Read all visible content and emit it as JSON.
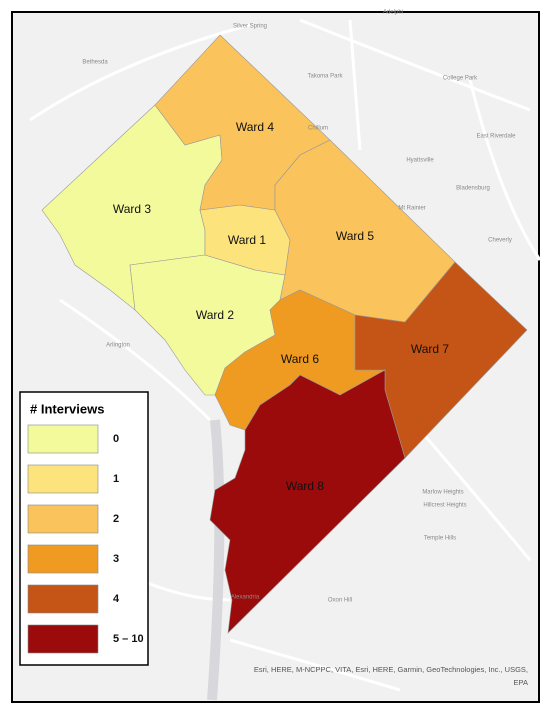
{
  "legend": {
    "title": "# Interviews",
    "classes": [
      {
        "label": "0",
        "color": "#f3fa9c"
      },
      {
        "label": "1",
        "color": "#fde37c"
      },
      {
        "label": "2",
        "color": "#fbc35b"
      },
      {
        "label": "3",
        "color": "#ef9b22"
      },
      {
        "label": "4",
        "color": "#c55516"
      },
      {
        "label": "5 – 10",
        "color": "#9b0b0b"
      }
    ]
  },
  "wards": [
    {
      "label": "Ward 3",
      "color": "#f3fa9c"
    },
    {
      "label": "Ward 2",
      "color": "#f3fa9c"
    },
    {
      "label": "Ward 1",
      "color": "#fde37c"
    },
    {
      "label": "Ward 4",
      "color": "#fbc35b"
    },
    {
      "label": "Ward 5",
      "color": "#fbc35b"
    },
    {
      "label": "Ward 6",
      "color": "#ef9b22"
    },
    {
      "label": "Ward 7",
      "color": "#c55516"
    },
    {
      "label": "Ward 8",
      "color": "#9b0b0b"
    }
  ],
  "places": [
    "Silver Spring",
    "Bethesda",
    "Takoma Park",
    "College Park",
    "Adelphi",
    "Hyattsville",
    "East Riverdale",
    "Bladensburg",
    "Mt Rainier",
    "Cheverly",
    "Chillum",
    "Arlington",
    "Marlow Heights",
    "Hillcrest Heights",
    "Temple Hills",
    "Alexandria",
    "Oxon Hill"
  ],
  "attribution": [
    "Esri, HERE, M-NCPPC, VITA, Esri, HERE, Garmin, GeoTechnologies, Inc., USGS,",
    "EPA"
  ]
}
